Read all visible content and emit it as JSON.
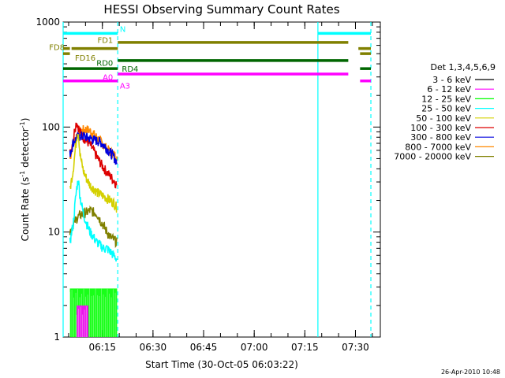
{
  "chart_data": {
    "type": "line",
    "title": "HESSI Observing Summary Count Rates",
    "xlabel": "Start Time (30-Oct-05 06:03:22)",
    "ylabel": "Count Rate (s",
    "ylabel_sup1": "-1",
    "ylabel_mid": " detector",
    "ylabel_sup2": "-1",
    "ylabel_end": ")",
    "y_scale": "log",
    "ylim": [
      1,
      1000
    ],
    "xlim_minutes": [
      0,
      94
    ],
    "x_tick_labels": [
      "06:15",
      "06:30",
      "06:45",
      "07:00",
      "07:15",
      "07:30"
    ],
    "x_tick_minutes": [
      11.63,
      26.63,
      41.63,
      56.63,
      71.63,
      86.63
    ],
    "y_tick_labels": [
      "1",
      "10",
      "100",
      "1000"
    ],
    "y_tick_values": [
      1,
      10,
      100,
      1000
    ],
    "legend_title": "Det 1,3,4,5,6,9",
    "series": [
      {
        "name": "3 - 6 keV",
        "color": "#000000"
      },
      {
        "name": "6 - 12 keV",
        "color": "#ff00ff"
      },
      {
        "name": "12 - 25 keV",
        "color": "#00ff00"
      },
      {
        "name": "25 - 50 keV",
        "color": "#00ffff"
      },
      {
        "name": "50 - 100 keV",
        "color": "#d4d000"
      },
      {
        "name": "100 - 300 keV",
        "color": "#dd0000"
      },
      {
        "name": "300 - 800 keV",
        "color": "#0000dd"
      },
      {
        "name": "800 - 7000 keV",
        "color": "#ff8800"
      },
      {
        "name": "7000 - 20000 keV",
        "color": "#808000"
      }
    ],
    "curves": [
      {
        "color": "#ff8800",
        "x_min": [
          2,
          3,
          4,
          5,
          6,
          7,
          8,
          9,
          10,
          11,
          12,
          13,
          14,
          15,
          16
        ],
        "y": [
          50,
          70,
          84,
          90,
          94,
          95,
          92,
          86,
          80,
          74,
          68,
          62,
          58,
          55,
          52
        ]
      },
      {
        "color": "#dd0000",
        "x_min": [
          2,
          3,
          3.5,
          4,
          5,
          6,
          7,
          8,
          9,
          10,
          11,
          12,
          13,
          14,
          15,
          16
        ],
        "y": [
          55,
          75,
          100,
          112,
          90,
          80,
          74,
          68,
          60,
          52,
          46,
          41,
          37,
          34,
          31,
          28
        ]
      },
      {
        "color": "#0000dd",
        "x_min": [
          2,
          3,
          4,
          5,
          6,
          7,
          8,
          9,
          10,
          11,
          12,
          13,
          14,
          15,
          16
        ],
        "y": [
          55,
          72,
          78,
          82,
          82,
          80,
          78,
          76,
          74,
          72,
          68,
          62,
          57,
          52,
          46
        ]
      },
      {
        "color": "#d4d000",
        "x_min": [
          2,
          3,
          4,
          4.5,
          5,
          6,
          7,
          8,
          9,
          10,
          11,
          12,
          13,
          14,
          15,
          16
        ],
        "y": [
          25,
          40,
          80,
          92,
          55,
          38,
          32,
          28,
          26,
          24,
          23,
          22,
          21,
          20,
          19,
          17
        ]
      },
      {
        "color": "#808000",
        "x_min": [
          2,
          3,
          4,
          5,
          6,
          7,
          8,
          9,
          10,
          11,
          12,
          13,
          14,
          15,
          16
        ],
        "y": [
          10,
          12,
          13.5,
          14.5,
          15,
          15.5,
          16,
          15.5,
          15,
          13,
          11.5,
          10,
          9,
          8.5,
          8
        ]
      },
      {
        "color": "#00ffff",
        "x_min": [
          2,
          3,
          3.5,
          4,
          4.5,
          5,
          6,
          7,
          8,
          9,
          10,
          11,
          12,
          13,
          14,
          15,
          16
        ],
        "y": [
          8,
          12,
          18,
          26,
          32,
          22,
          15,
          12,
          10,
          9,
          8,
          7.5,
          7,
          7,
          6.5,
          6,
          5.5
        ]
      }
    ],
    "low_bands": [
      {
        "color": "#00ff00",
        "x_start_min": 2,
        "x_end_min": 16,
        "y_top": 2.9
      },
      {
        "color": "#ff00ff",
        "x_start_min": 4,
        "x_end_min": 7.5,
        "y_top": 2.0
      }
    ],
    "vertical_lines": [
      {
        "color": "#00ffff",
        "x_min": 0,
        "style": "solid"
      },
      {
        "color": "#00ffff",
        "x_min": 16.2,
        "style": "dashed"
      },
      {
        "color": "#00ffff",
        "x_min": 75.5,
        "style": "solid"
      },
      {
        "color": "#00ffff",
        "x_min": 91.2,
        "style": "dashed"
      }
    ],
    "flag_bars": [
      {
        "label": "N",
        "color": "#00ffff",
        "label_x_min": 16.8,
        "label_y": 860,
        "label_anchor": "start",
        "segments": [
          [
            0,
            16.2
          ],
          [
            75.5,
            91.2
          ]
        ],
        "bar_y": 780
      },
      {
        "label": "FD1",
        "color": "#808000",
        "label_x_min": 14.8,
        "label_y": 680,
        "label_anchor": "end",
        "segments": [
          [
            16.2,
            84.5
          ]
        ],
        "bar_y": 640
      },
      {
        "label": "FD8",
        "color": "#808000",
        "label_x_min": 0.5,
        "label_y": 580,
        "label_anchor": "end",
        "segments": [
          [
            0,
            2
          ],
          [
            2.5,
            16.2
          ],
          [
            87.5,
            91.2
          ]
        ],
        "bar_y": 560
      },
      {
        "label": "FD16",
        "color": "#808000",
        "label_x_min": 3.5,
        "label_y": 460,
        "label_anchor": "start",
        "segments": [
          [
            0,
            2
          ],
          [
            88,
            91.2
          ]
        ],
        "bar_y": 500
      },
      {
        "label": "RD0",
        "color": "#006600",
        "label_x_min": 14.8,
        "label_y": 410,
        "label_anchor": "end",
        "segments": [
          [
            16.2,
            84.5
          ]
        ],
        "bar_y": 430
      },
      {
        "label": "RD4",
        "color": "#006600",
        "label_x_min": 17.4,
        "label_y": 360,
        "label_anchor": "start",
        "segments": [
          [
            0,
            16.2
          ],
          [
            88,
            91.2
          ]
        ],
        "bar_y": 360
      },
      {
        "label": "A0",
        "color": "#ff00ff",
        "label_x_min": 14.8,
        "label_y": 300,
        "label_anchor": "end",
        "segments": [
          [
            16.2,
            84.5
          ]
        ],
        "bar_y": 320
      },
      {
        "label": "A3",
        "color": "#ff00ff",
        "label_x_min": 16.8,
        "label_y": 250,
        "label_anchor": "start",
        "segments": [
          [
            0,
            16.2
          ],
          [
            88,
            91.2
          ]
        ],
        "bar_y": 275
      }
    ]
  },
  "footer": {
    "timestamp": "26-Apr-2010 10:48"
  }
}
